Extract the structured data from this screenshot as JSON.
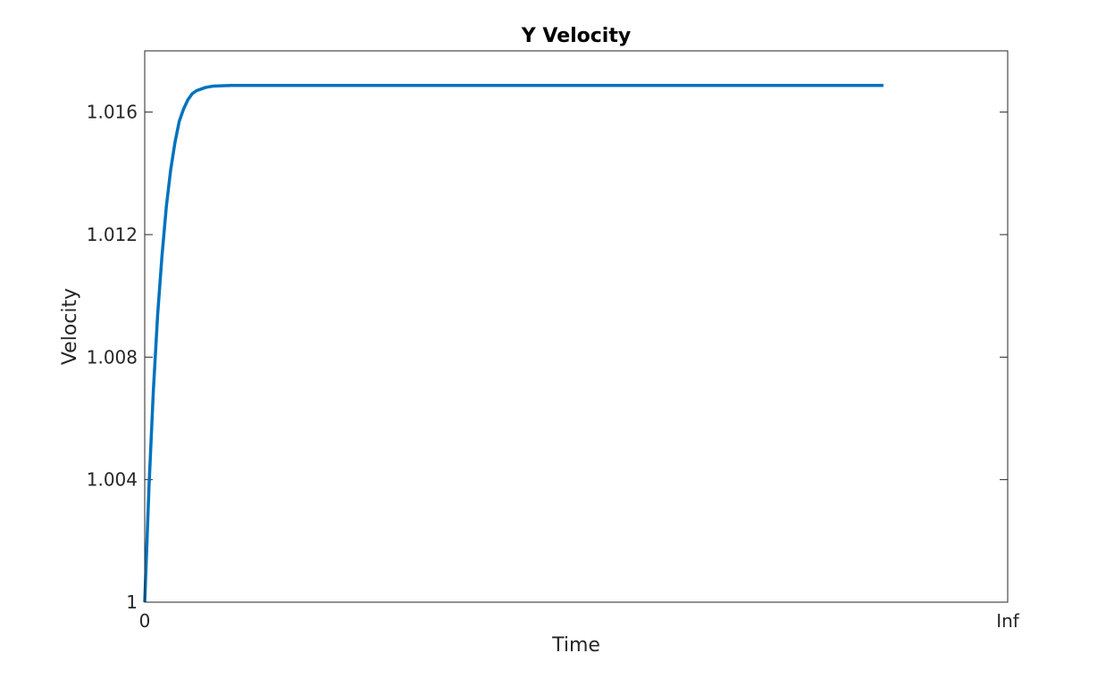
{
  "chart_data": {
    "type": "line",
    "title": "Y Velocity",
    "xlabel": "Time",
    "ylabel": "Velocity",
    "xlim": [
      0,
      1
    ],
    "ylim": [
      1,
      1.018
    ],
    "x_ticks": [
      {
        "value": 0,
        "label": "0"
      },
      {
        "value": 1,
        "label": "Inf"
      }
    ],
    "y_ticks": [
      {
        "value": 1,
        "label": "1"
      },
      {
        "value": 1.004,
        "label": "1.004"
      },
      {
        "value": 1.008,
        "label": "1.008"
      },
      {
        "value": 1.012,
        "label": "1.012"
      },
      {
        "value": 1.016,
        "label": "1.016"
      }
    ],
    "grid": false,
    "box": true,
    "series": [
      {
        "color": "#0072BD",
        "x": [
          0,
          0.005,
          0.01,
          0.015,
          0.02,
          0.025,
          0.03,
          0.035,
          0.04,
          0.045,
          0.05,
          0.055,
          0.06,
          0.065,
          0.07,
          0.075,
          0.08,
          0.09,
          0.1,
          0.11,
          0.12,
          0.14,
          0.16,
          0.18,
          0.2,
          0.25,
          0.3,
          0.4,
          0.5,
          0.6,
          0.7,
          0.8,
          0.856
        ],
        "y": [
          1.0,
          1.0038,
          1.0069,
          1.0094,
          1.0113,
          1.0129,
          1.0141,
          1.015,
          1.0157,
          1.0161,
          1.0164,
          1.0166,
          1.0167,
          1.01675,
          1.0168,
          1.01683,
          1.01685,
          1.01686,
          1.01687,
          1.01687,
          1.01687,
          1.01687,
          1.01687,
          1.01687,
          1.01687,
          1.01687,
          1.01687,
          1.01687,
          1.01687,
          1.01687,
          1.01687,
          1.01687,
          1.01687
        ]
      }
    ]
  }
}
